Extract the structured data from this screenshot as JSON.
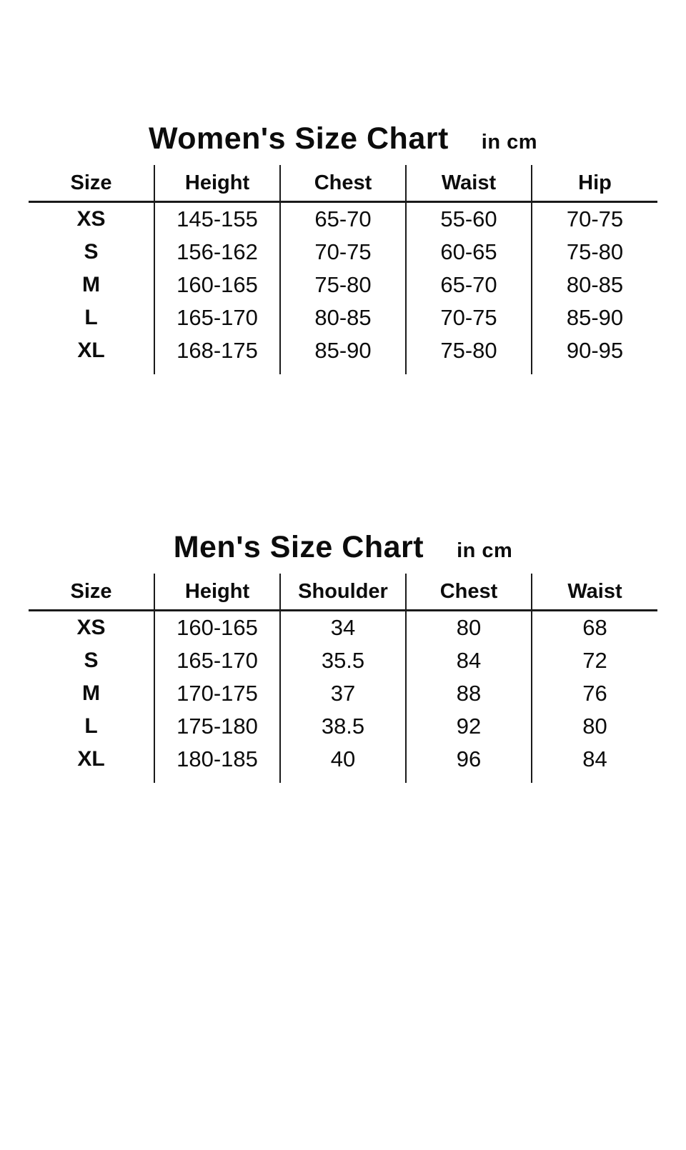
{
  "page": {
    "background_color": "#ffffff",
    "text_color": "#0c0c0c",
    "line_color": "#1a1a1a"
  },
  "tables": [
    {
      "title": "Women's Size Chart",
      "unit_label": "in cm",
      "columns": [
        "Size",
        "Height",
        "Chest",
        "Waist",
        "Hip"
      ],
      "rows": [
        [
          "XS",
          "145-155",
          "65-70",
          "55-60",
          "70-75"
        ],
        [
          "S",
          "156-162",
          "70-75",
          "60-65",
          "75-80"
        ],
        [
          "M",
          "160-165",
          "75-80",
          "65-70",
          "80-85"
        ],
        [
          "L",
          "165-170",
          "80-85",
          "70-75",
          "85-90"
        ],
        [
          "XL",
          "168-175",
          "85-90",
          "75-80",
          "90-95"
        ]
      ]
    },
    {
      "title": "Men's Size Chart",
      "unit_label": "in cm",
      "columns": [
        "Size",
        "Height",
        "Shoulder",
        "Chest",
        "Waist"
      ],
      "rows": [
        [
          "XS",
          "160-165",
          "34",
          "80",
          "68"
        ],
        [
          "S",
          "165-170",
          "35.5",
          "84",
          "72"
        ],
        [
          "M",
          "170-175",
          "37",
          "88",
          "76"
        ],
        [
          "L",
          "175-180",
          "38.5",
          "92",
          "80"
        ],
        [
          "XL",
          "180-185",
          "40",
          "96",
          "84"
        ]
      ]
    }
  ]
}
